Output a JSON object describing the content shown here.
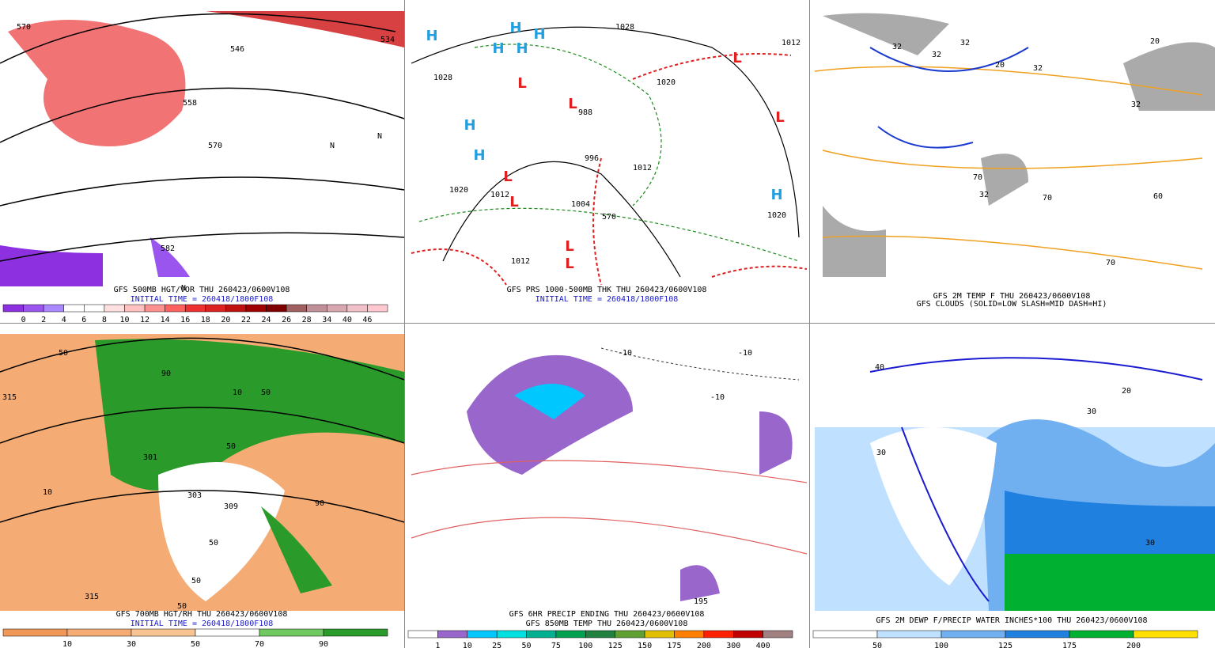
{
  "panels": [
    {
      "captions": [
        "GFS 500MB HGT/VOR THU 260423/0600V108",
        "INITIAL TIME = 260418/1800F108"
      ],
      "colorbar": {
        "colors": [
          "#8c30e0",
          "#9955ee",
          "#aa88ff",
          "#ffffff",
          "#ffffff",
          "#ffe0e0",
          "#ffc0c0",
          "#ff9090",
          "#ff6060",
          "#ee3030",
          "#dd2020",
          "#c01010",
          "#a00000",
          "#800000",
          "#a06060",
          "#c09098",
          "#d8a8b0",
          "#f0c0c8",
          "#ffc8d0"
        ],
        "labels": [
          0,
          2,
          4,
          6,
          8,
          10,
          12,
          14,
          16,
          18,
          20,
          22,
          24,
          26,
          28,
          34,
          40,
          46
        ]
      },
      "map_labels": [
        "570",
        "534",
        "546",
        "558",
        "570",
        "582",
        "N",
        "N",
        "N"
      ]
    },
    {
      "captions": [
        "GFS PRS 1000-500MB THK THU 260423/0600V108",
        "INITIAL TIME = 260418/1800F108"
      ],
      "map_labels": [
        "H",
        "H",
        "H",
        "H",
        "H",
        "H",
        "H",
        "H",
        "L",
        "L",
        "L",
        "L",
        "L",
        "L",
        "L",
        "L",
        "1028",
        "1028",
        "1020",
        "1012",
        "1012",
        "1004",
        "996",
        "988",
        "1020",
        "1012",
        "1012",
        "1020",
        "570"
      ]
    },
    {
      "captions": [
        "GFS 2M TEMP F THU 260423/0600V108",
        "GFS CLOUDS (SOLID=LOW SLASH=MID DASH=HI)"
      ],
      "map_labels": [
        "32",
        "32",
        "32",
        "32",
        "32",
        "32",
        "20",
        "20",
        "70",
        "70",
        "70",
        "60"
      ]
    },
    {
      "captions": [
        "GFS 700MB HGT/RH THU 260423/0600V108",
        "INITIAL TIME = 260418/1800F108"
      ],
      "colorbar": {
        "colors": [
          "#f09858",
          "#f4ac74",
          "#f8c494",
          "#ffffff",
          "#70c860",
          "#2a9a2a"
        ],
        "labels": [
          10,
          30,
          50,
          70,
          90
        ]
      },
      "map_labels": [
        "315",
        "10",
        "50",
        "90",
        "10",
        "50",
        "50",
        "303",
        "309",
        "301",
        "90",
        "50",
        "50",
        "315",
        "50"
      ]
    },
    {
      "captions": [
        "GFS 6HR PRECIP ENDING THU 260423/0600V108",
        "GFS 850MB TEMP THU 260423/0600V108"
      ],
      "colorbar": {
        "colors": [
          "#ffffff",
          "#9966cc",
          "#00c8ff",
          "#00e0e0",
          "#00b090",
          "#00a050",
          "#208040",
          "#60a030",
          "#e0c000",
          "#ff8000",
          "#ff2000",
          "#c00000",
          "#a08080"
        ],
        "labels": [
          1,
          10,
          25,
          50,
          75,
          100,
          125,
          150,
          175,
          200,
          300,
          400
        ]
      },
      "map_labels": [
        "-10",
        "-10",
        "-10",
        "195"
      ]
    },
    {
      "captions": [
        "GFS 2M DEWP F/PRECIP WATER INCHES*100 THU 260423/0600V108"
      ],
      "colorbar": {
        "colors": [
          "#ffffff",
          "#c0e0ff",
          "#70b0f0",
          "#2080e0",
          "#00b030",
          "#ffe000"
        ],
        "labels": [
          50,
          100,
          125,
          175,
          200
        ]
      },
      "map_labels": [
        "40",
        "30",
        "30",
        "30",
        "20"
      ]
    }
  ]
}
